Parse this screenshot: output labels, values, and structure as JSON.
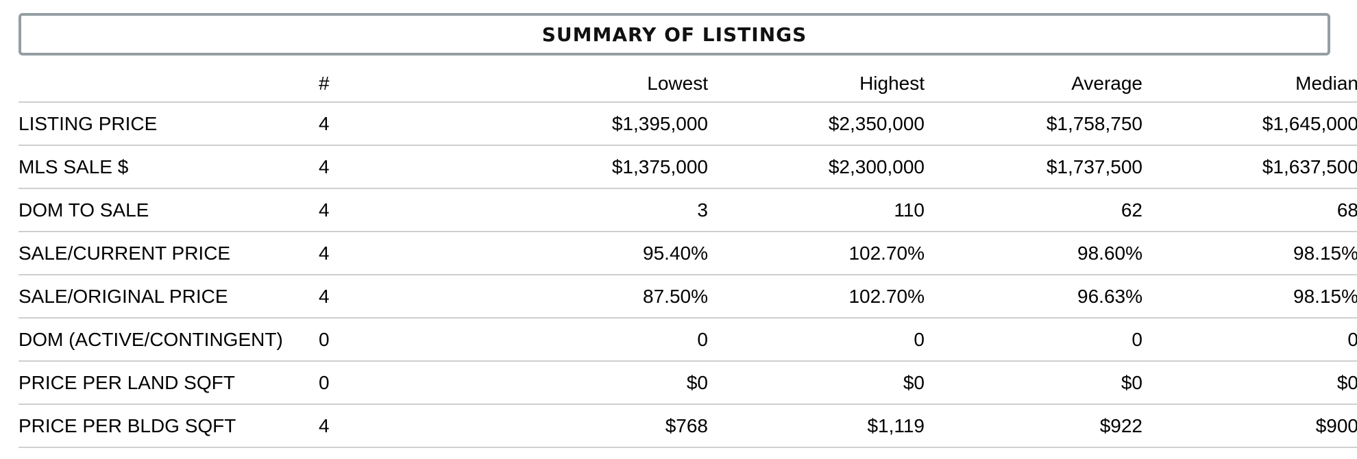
{
  "title": "SUMMARY OF LISTINGS",
  "headers": {
    "label": "",
    "count": "#",
    "lowest": "Lowest",
    "highest": "Highest",
    "average": "Average",
    "median": "Median"
  },
  "rows": [
    {
      "label": "LISTING PRICE",
      "count": "4",
      "lowest": "$1,395,000",
      "highest": "$2,350,000",
      "average": "$1,758,750",
      "median": "$1,645,000"
    },
    {
      "label": "MLS SALE $",
      "count": "4",
      "lowest": "$1,375,000",
      "highest": "$2,300,000",
      "average": "$1,737,500",
      "median": "$1,637,500"
    },
    {
      "label": "DOM TO SALE",
      "count": "4",
      "lowest": "3",
      "highest": "110",
      "average": "62",
      "median": "68"
    },
    {
      "label": "SALE/CURRENT PRICE",
      "count": "4",
      "lowest": "95.40%",
      "highest": "102.70%",
      "average": "98.60%",
      "median": "98.15%"
    },
    {
      "label": "SALE/ORIGINAL PRICE",
      "count": "4",
      "lowest": "87.50%",
      "highest": "102.70%",
      "average": "96.63%",
      "median": "98.15%"
    },
    {
      "label": "DOM (ACTIVE/CONTINGENT)",
      "count": "0",
      "lowest": "0",
      "highest": "0",
      "average": "0",
      "median": "0"
    },
    {
      "label": "PRICE PER LAND SQFT",
      "count": "0",
      "lowest": "$0",
      "highest": "$0",
      "average": "$0",
      "median": "$0"
    },
    {
      "label": "PRICE PER BLDG SQFT",
      "count": "4",
      "lowest": "$768",
      "highest": "$1,119",
      "average": "$922",
      "median": "$900"
    }
  ],
  "colors": {
    "title_border": "#949ea3",
    "row_divider": "#cfcfcf"
  }
}
